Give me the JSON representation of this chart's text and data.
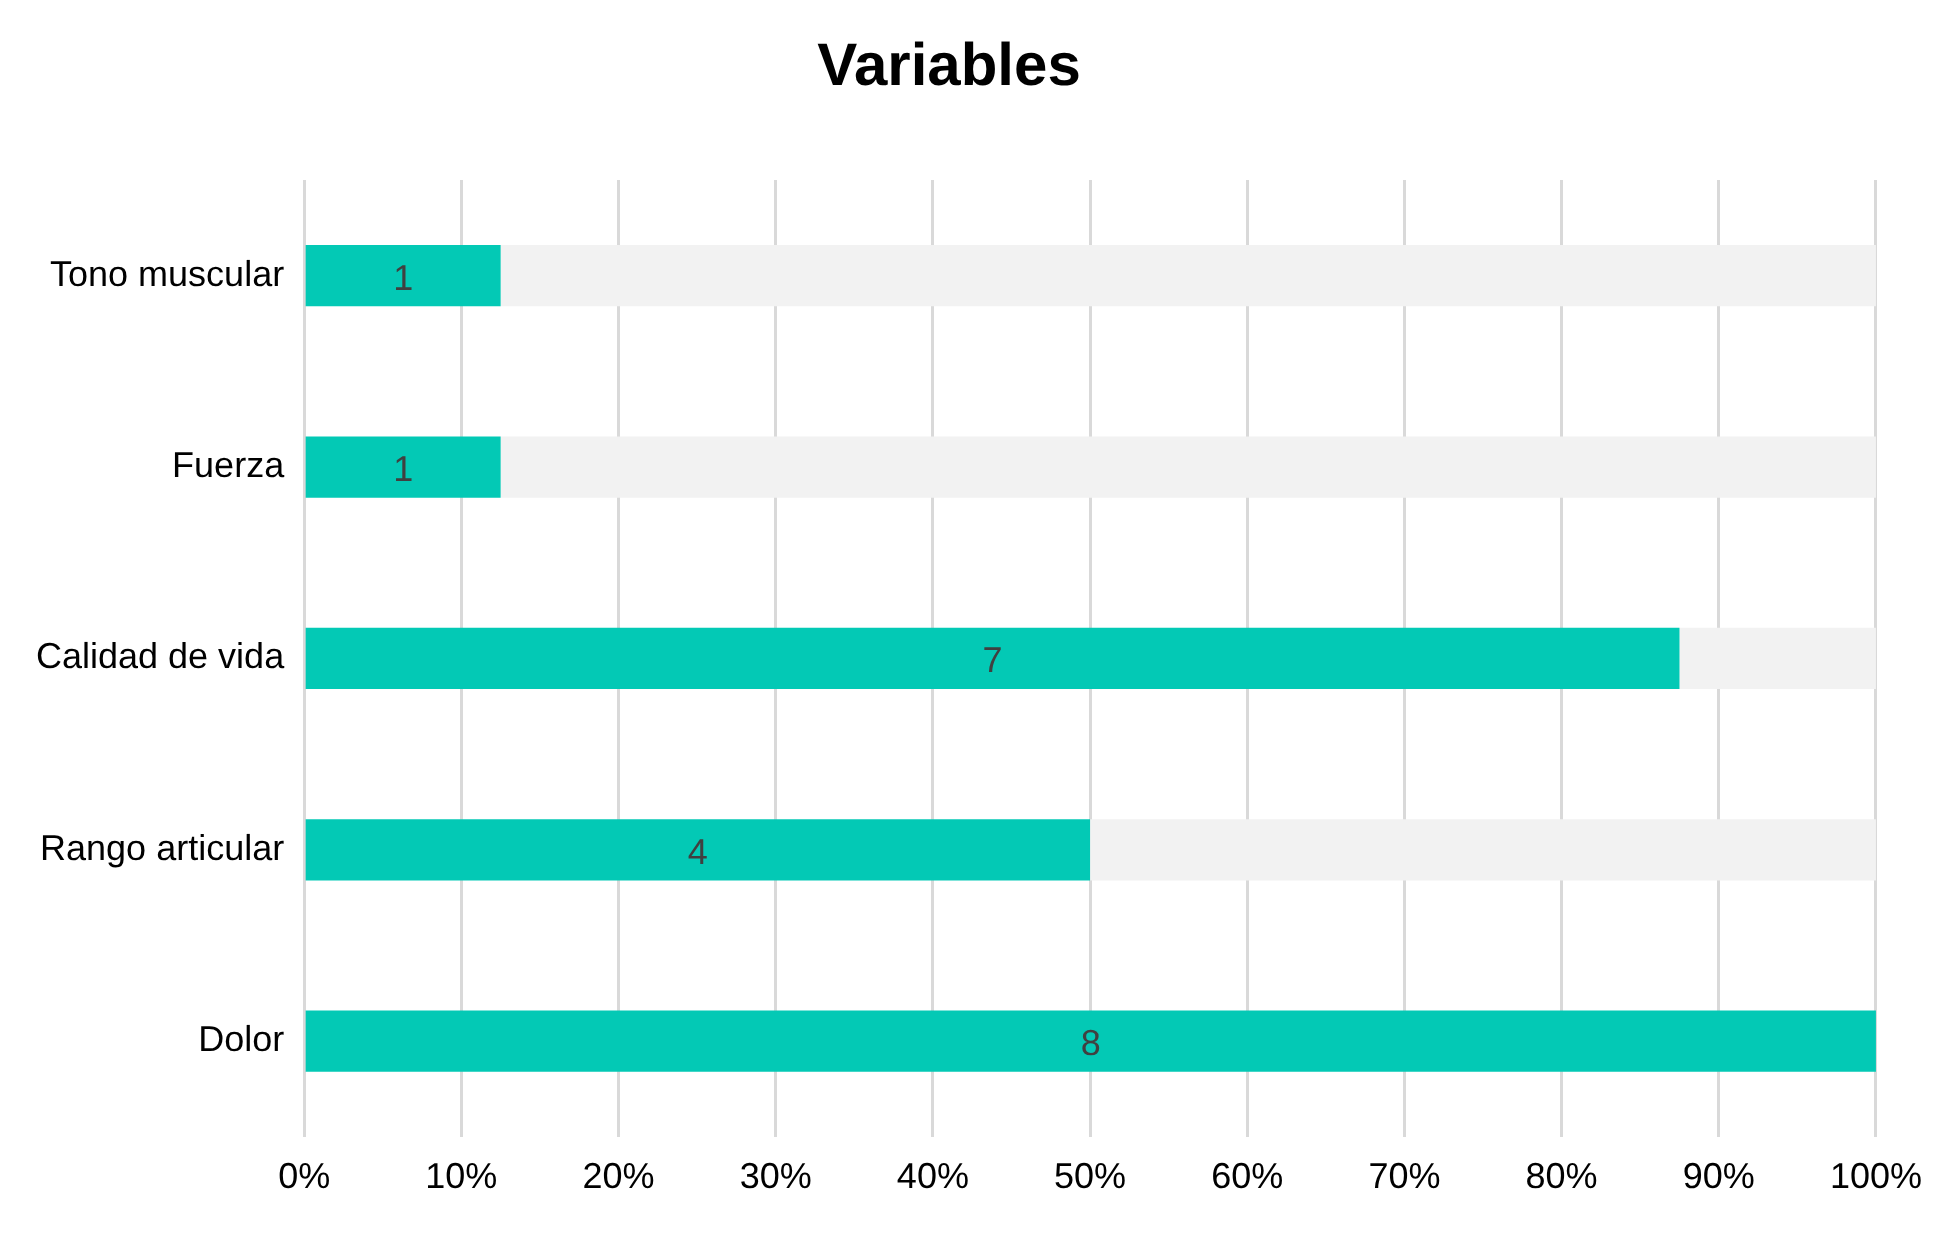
{
  "chart_data": {
    "type": "bar",
    "title": "Variables",
    "orientation": "horizontal",
    "stacked": true,
    "grid": "x",
    "categories": [
      "Tono muscular",
      "Fuerza",
      "Calidad de vida",
      "Rango articular",
      "Dolor"
    ],
    "series": [
      {
        "color": "#03c9b5",
        "values": [
          12.5,
          12.5,
          87.5,
          50,
          100
        ]
      },
      {
        "color": "#f2f2f2",
        "values": [
          87.5,
          87.5,
          12.5,
          50,
          0
        ]
      }
    ],
    "annotations": [
      "1",
      "1",
      "7",
      "4",
      "8"
    ],
    "xlim": [
      0,
      100
    ],
    "xticks": [
      {
        "value": 0,
        "label": "0%"
      },
      {
        "value": 10,
        "label": "10%"
      },
      {
        "value": 20,
        "label": "20%"
      },
      {
        "value": 30,
        "label": "30%"
      },
      {
        "value": 40,
        "label": "40%"
      },
      {
        "value": 50,
        "label": "50%"
      },
      {
        "value": 60,
        "label": "60%"
      },
      {
        "value": 70,
        "label": "70%"
      },
      {
        "value": 80,
        "label": "80%"
      },
      {
        "value": 90,
        "label": "90%"
      },
      {
        "value": 100,
        "label": "100%"
      }
    ]
  }
}
